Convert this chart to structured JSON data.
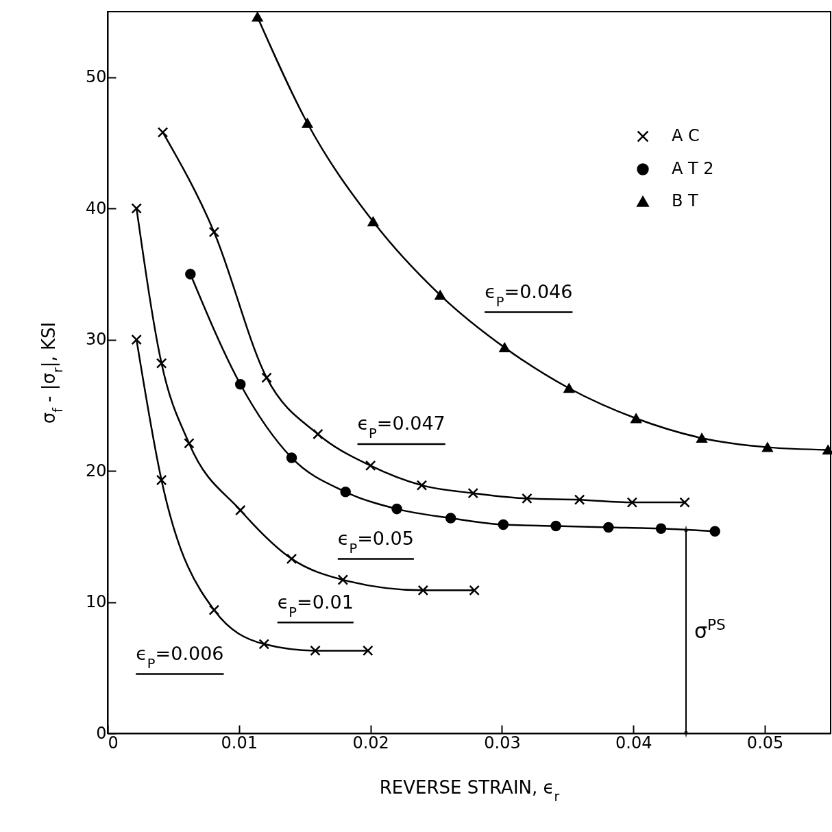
{
  "chart_data": {
    "type": "line",
    "xlabel": "REVERSE STRAIN, ϵ$_{r}$",
    "ylabel": "σ$_{f}$ - |σ$_{r}$|, KSI",
    "xlim": [
      0,
      0.055
    ],
    "ylim": [
      0,
      55
    ],
    "xticks": [
      0,
      0.01,
      0.02,
      0.03,
      0.04,
      0.05
    ],
    "yticks": [
      0,
      10,
      20,
      30,
      40,
      50
    ],
    "grid": false,
    "legend": "top right",
    "series": [
      {
        "name": "A C",
        "color": "#000000",
        "marker": "cross",
        "x": [
          0.0042,
          0.0081,
          0.0121,
          0.016,
          0.02,
          0.0239,
          0.0278,
          0.0319,
          0.0359,
          0.0399,
          0.0439
        ],
        "values": [
          45.8,
          38.2,
          27.1,
          22.8,
          20.4,
          18.9,
          18.3,
          17.9,
          17.8,
          17.6,
          17.6
        ]
      },
      {
        "name": "A T 2",
        "color": "#000000",
        "marker": "circle",
        "x": [
          0.0063,
          0.0101,
          0.014,
          0.0181,
          0.022,
          0.0261,
          0.0301,
          0.0341,
          0.0381,
          0.0421,
          0.0462
        ],
        "values": [
          35.0,
          26.6,
          21.0,
          18.4,
          17.1,
          16.4,
          15.9,
          15.8,
          15.7,
          15.6,
          15.4
        ]
      },
      {
        "name": "B T",
        "color": "#000000",
        "marker": "triangle",
        "x": [
          0.0114,
          0.0152,
          0.0202,
          0.0253,
          0.0302,
          0.0351,
          0.0402,
          0.0452,
          0.0502,
          0.0548
        ],
        "values": [
          54.6,
          46.5,
          39.0,
          33.4,
          29.4,
          26.3,
          24.0,
          22.5,
          21.8,
          21.6
        ]
      },
      {
        "color": "#000000",
        "marker": "cross",
        "x": [
          0.0022,
          0.0041,
          0.0062,
          0.0101,
          0.014,
          0.0179,
          0.024,
          0.0279
        ],
        "values": [
          40.0,
          28.2,
          22.1,
          17.0,
          13.3,
          11.7,
          10.9,
          10.9
        ]
      },
      {
        "color": "#000000",
        "marker": "cross",
        "x": [
          0.0022,
          0.0041,
          0.0081,
          0.0119,
          0.0158,
          0.0198
        ],
        "values": [
          30.0,
          19.3,
          9.4,
          6.8,
          6.3,
          6.3
        ]
      }
    ],
    "annotations": [
      {
        "text": "ϵ$_{P}$=0.046",
        "x": 0.0302,
        "y": 29.4
      },
      {
        "text": "ϵ$_{P}$=0.047",
        "x": 0.02,
        "y": 20.4
      },
      {
        "text": "ϵ$_{P}$=0.05",
        "x": 0.0179,
        "y": 11.7
      },
      {
        "text": "ϵ$_{P}$=0.01",
        "x": 0.0119,
        "y": 6.8
      },
      {
        "text": "ϵ$_{P}$=0.006",
        "x": 0.0081,
        "y": 9.4
      }
    ],
    "ref_lines": [
      {
        "axis": "x",
        "value": 0.044,
        "label": "σ$^{PS}$"
      }
    ]
  }
}
